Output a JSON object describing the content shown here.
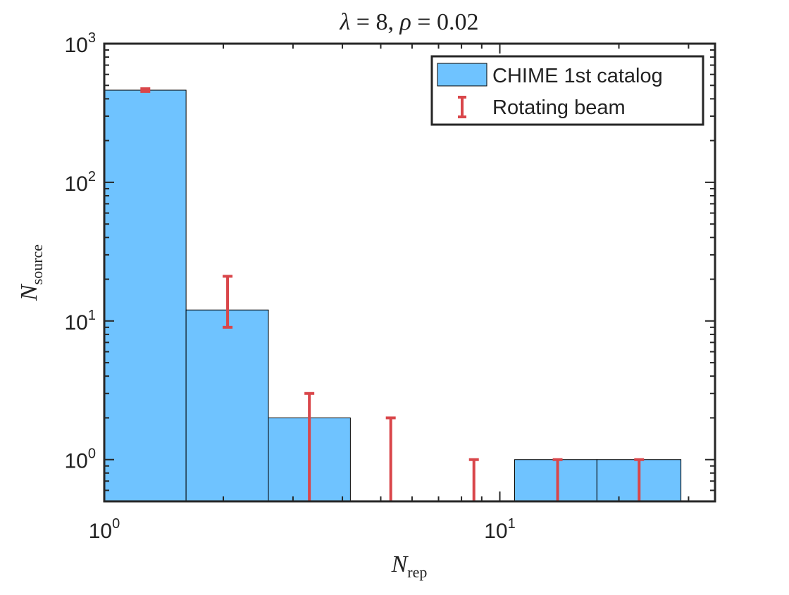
{
  "chart_data": {
    "type": "histogram",
    "title": {
      "lambda": "λ",
      "eq1": " = 8, ",
      "rho": "ρ",
      "eq2": " = 0.02"
    },
    "xlabel": {
      "main": "N",
      "sub": "rep"
    },
    "ylabel": {
      "main": "N",
      "sub": "source"
    },
    "bins": [
      1,
      1.61,
      2.6,
      4.19,
      6.76,
      10.9,
      17.6,
      28.7
    ],
    "series": [
      {
        "name": "CHIME 1st catalog",
        "color": "#6fc3ff",
        "values": [
          462,
          12,
          2,
          0,
          0,
          1,
          1
        ]
      },
      {
        "name": "Rotating beam",
        "color": "#d9464a",
        "x": [
          1.27,
          2.05,
          3.3,
          5.3,
          8.6,
          14,
          22.5
        ],
        "lower": [
          452,
          9,
          0,
          0,
          0,
          0,
          0
        ],
        "upper": [
          473,
          21,
          3,
          2,
          1,
          1,
          1
        ]
      }
    ],
    "xlim": [
      1,
      35
    ],
    "ylim": [
      0.5,
      1000
    ],
    "xscale": "log",
    "yscale": "log",
    "xticks": [
      {
        "value": 1,
        "label": "10^0"
      },
      {
        "value": 10,
        "label": "10^1"
      }
    ],
    "yticks": [
      {
        "value": 1,
        "label": "10^0"
      },
      {
        "value": 10,
        "label": "10^1"
      },
      {
        "value": 100,
        "label": "10^2"
      },
      {
        "value": 1000,
        "label": "10^3"
      }
    ],
    "xminorticks": [
      2,
      3,
      4,
      5,
      6,
      7,
      8,
      9,
      20,
      30
    ],
    "yminorticks": [
      0.6,
      0.7,
      0.8,
      0.9,
      2,
      3,
      4,
      5,
      6,
      7,
      8,
      9,
      20,
      30,
      40,
      50,
      60,
      70,
      80,
      90,
      200,
      300,
      400,
      500,
      600,
      700,
      800,
      900
    ],
    "legend": "upper right",
    "grid": false
  }
}
